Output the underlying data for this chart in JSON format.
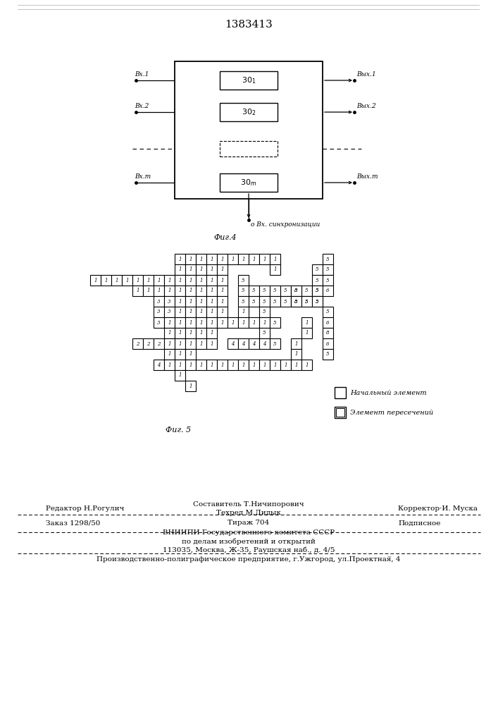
{
  "title": "1383413",
  "legend1": "Начальный элемент",
  "legend2": "Элемент пересечений",
  "editor_line": "Редактор Н.Рогулич",
  "compiler_line": "Составитель Т.Ничипорович",
  "techred_line": "Техред М.Дидык",
  "corrector_line": "Корректор·И. Муска",
  "order_line": "Заказ 1298/50",
  "tirazh_line": "Тираж 704",
  "podpisnoe_line": "Подписное",
  "vniip_line": "ВНИИПИ Государственного комитета СССР",
  "podelam_line": "по делам изобретений и открытий",
  "address_line": "113035, Москва, Ж-35, Раушская наб., д. 4/5",
  "factory_line": "Производственно-полиграфическое предприятие, г.Ужгород, ул.Проектная̅, 4"
}
